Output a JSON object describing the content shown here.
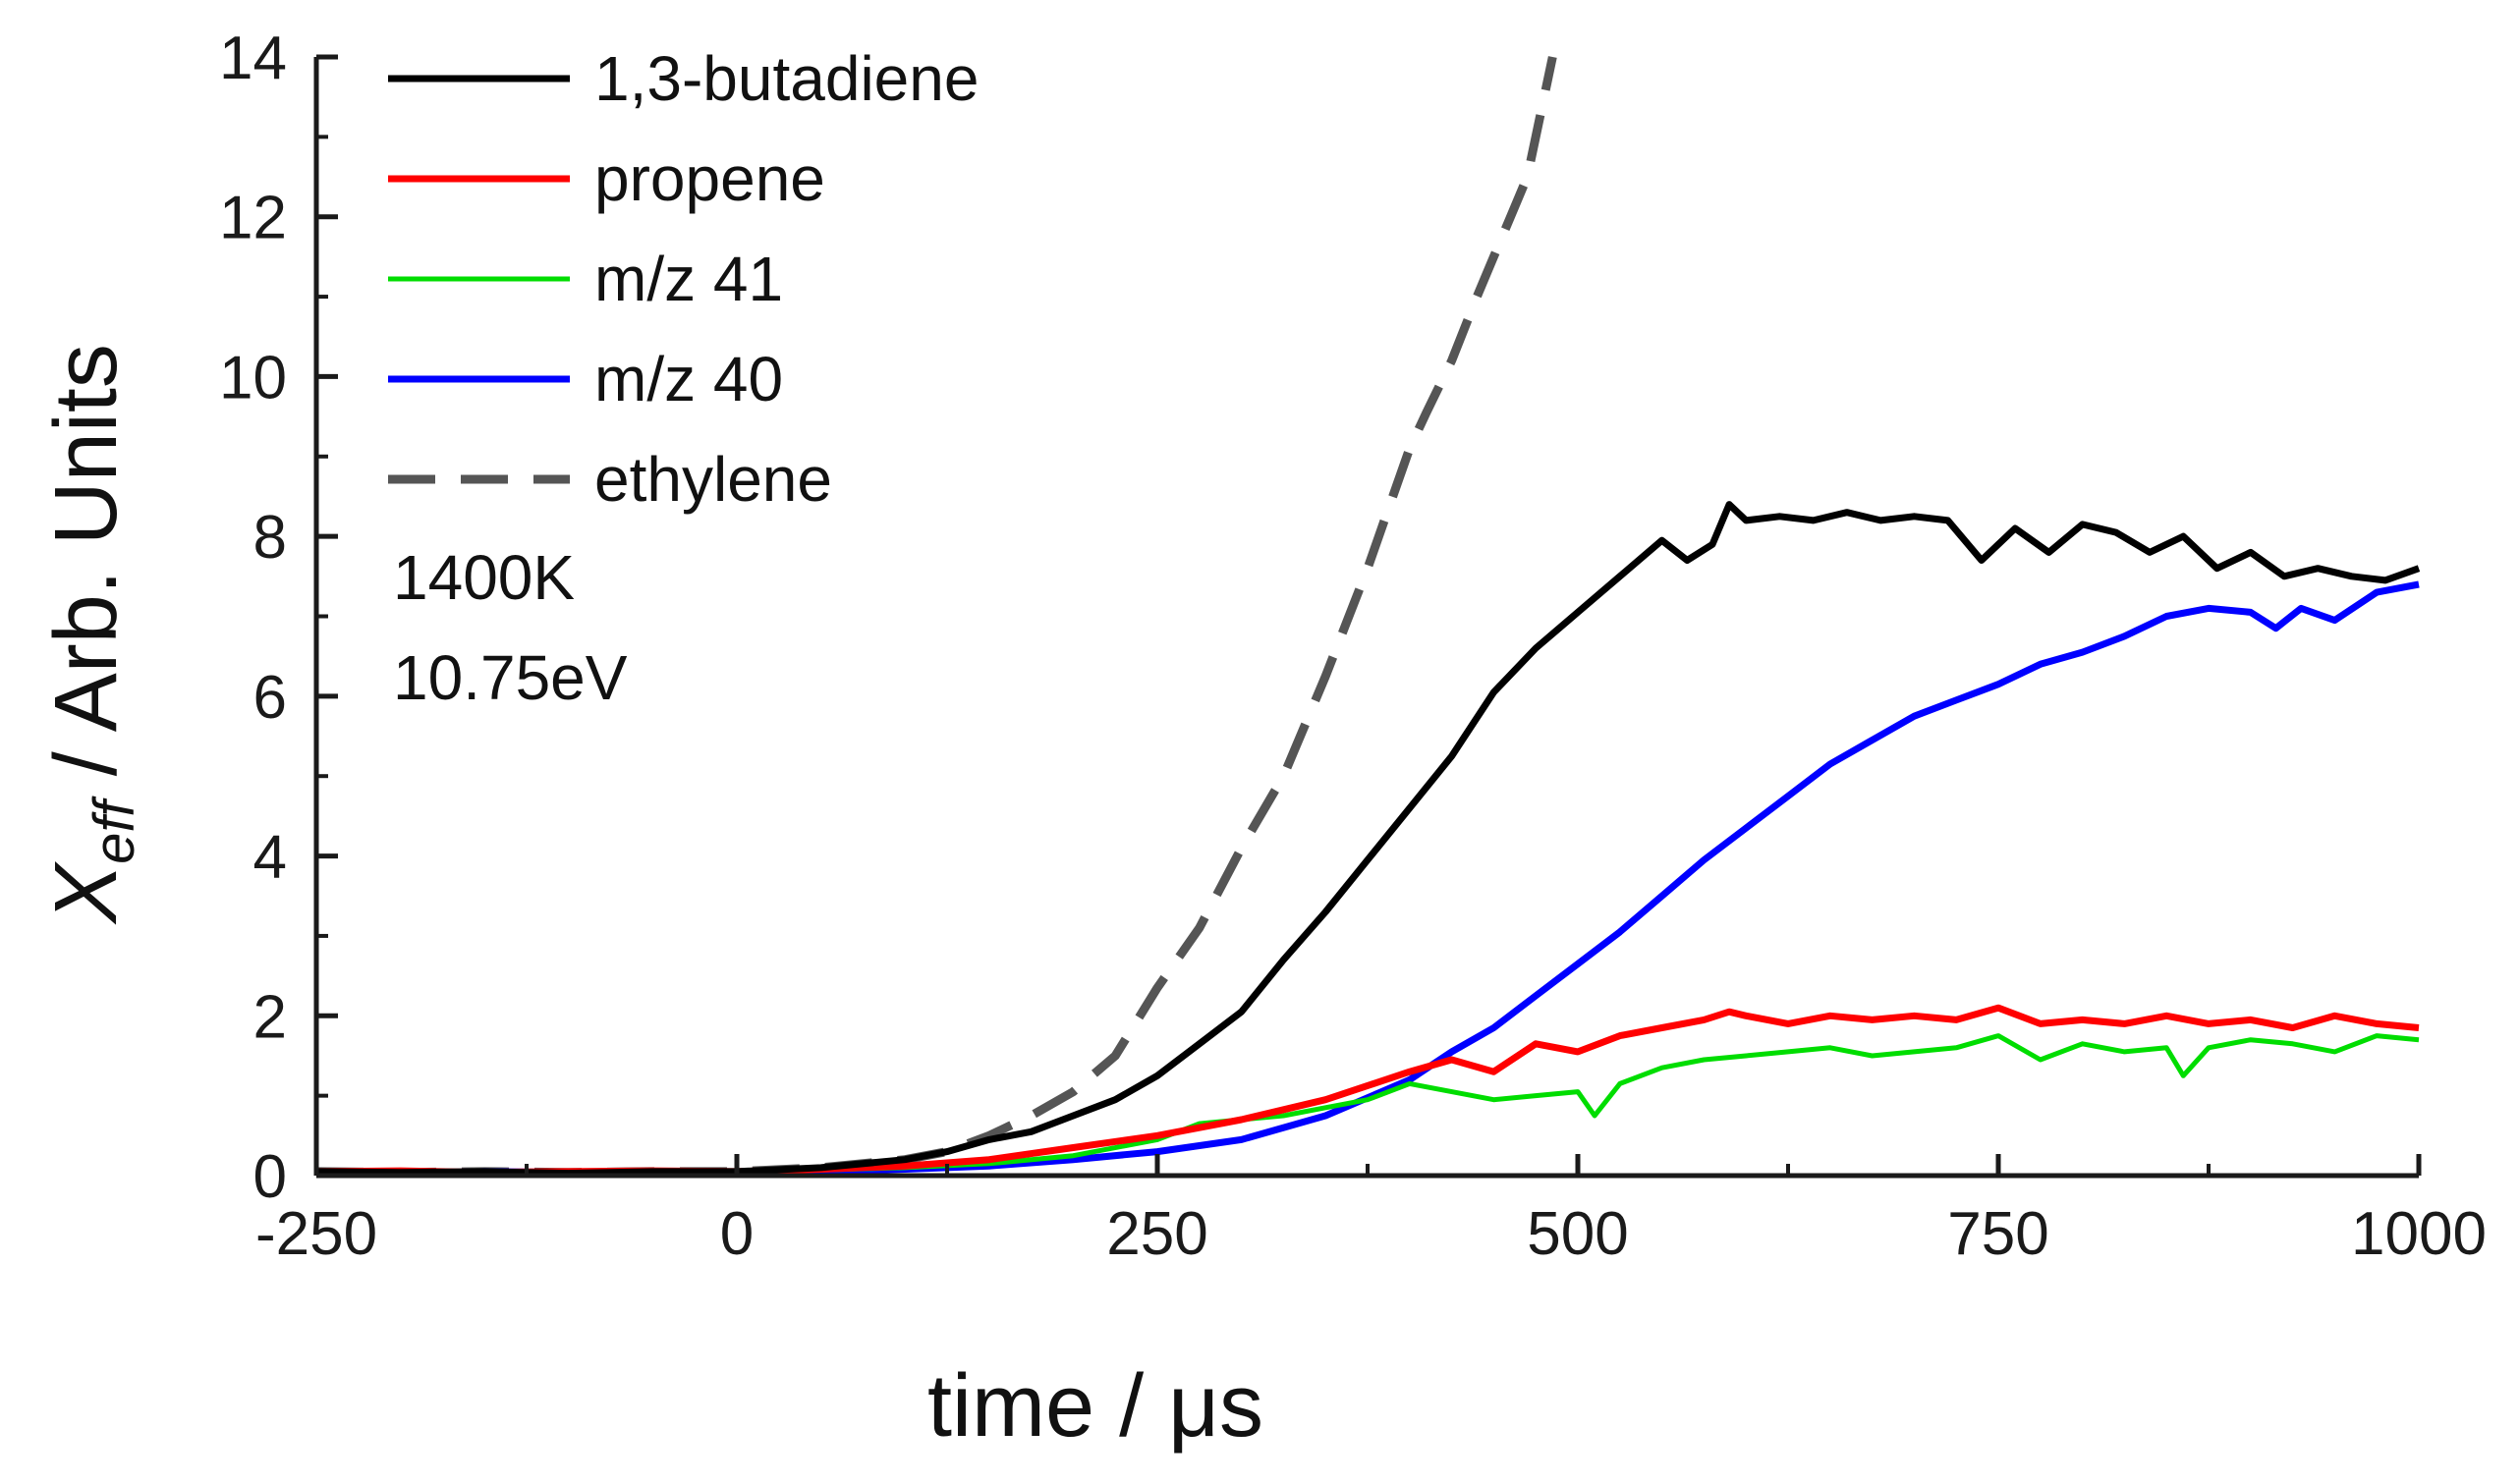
{
  "chart_data": {
    "type": "line",
    "title": "",
    "xlabel": "time / μs",
    "ylabel_main": "X",
    "ylabel_sub": "eff",
    "ylabel_rest": " / Arb. Units",
    "xlim": [
      -250,
      1000
    ],
    "ylim": [
      0,
      14
    ],
    "x_ticks": [
      -250,
      0,
      250,
      500,
      750,
      1000
    ],
    "y_ticks": [
      0,
      2,
      4,
      6,
      8,
      10,
      12,
      14
    ],
    "grid": false,
    "legend_position": "top-left",
    "annotations": [
      "1400K",
      "10.75eV"
    ],
    "series": [
      {
        "name": "1,3-butadiene",
        "color": "#000000",
        "style": "solid",
        "x": [
          -250,
          -200,
          -150,
          -100,
          -50,
          0,
          50,
          100,
          125,
          150,
          175,
          200,
          225,
          250,
          275,
          300,
          325,
          350,
          375,
          400,
          425,
          450,
          475,
          500,
          525,
          550,
          565,
          580,
          590,
          600,
          620,
          640,
          660,
          680,
          700,
          720,
          740,
          760,
          780,
          800,
          820,
          840,
          860,
          880,
          900,
          920,
          940,
          960,
          980,
          1000
        ],
        "y": [
          0.05,
          0.04,
          0.05,
          0.03,
          0.05,
          0.05,
          0.1,
          0.2,
          0.3,
          0.45,
          0.55,
          0.75,
          0.95,
          1.25,
          1.65,
          2.05,
          2.7,
          3.3,
          3.95,
          4.6,
          5.25,
          6.05,
          6.6,
          7.05,
          7.5,
          7.95,
          7.7,
          7.9,
          8.4,
          8.2,
          8.25,
          8.2,
          8.3,
          8.2,
          8.25,
          8.2,
          7.7,
          8.1,
          7.8,
          8.15,
          8.05,
          7.8,
          8.0,
          7.6,
          7.8,
          7.5,
          7.6,
          7.5,
          7.45,
          7.6
        ]
      },
      {
        "name": "propene",
        "color": "#ff0000",
        "style": "solid",
        "x": [
          -250,
          -200,
          -150,
          -100,
          -50,
          0,
          50,
          100,
          150,
          200,
          250,
          300,
          350,
          400,
          425,
          450,
          475,
          500,
          525,
          550,
          575,
          590,
          600,
          625,
          650,
          675,
          700,
          725,
          750,
          775,
          800,
          825,
          850,
          875,
          900,
          925,
          950,
          975,
          1000
        ],
        "y": [
          0.05,
          0.06,
          0.04,
          0.05,
          0.06,
          0.05,
          0.08,
          0.12,
          0.2,
          0.35,
          0.5,
          0.7,
          0.95,
          1.3,
          1.45,
          1.3,
          1.65,
          1.55,
          1.75,
          1.85,
          1.95,
          2.05,
          2.0,
          1.9,
          2.0,
          1.95,
          2.0,
          1.95,
          2.1,
          1.9,
          1.95,
          1.9,
          2.0,
          1.9,
          1.95,
          1.85,
          2.0,
          1.9,
          1.85
        ]
      },
      {
        "name": "m/z 41",
        "color": "#00dd00",
        "style": "solid",
        "x": [
          -250,
          -200,
          -150,
          -100,
          -50,
          0,
          50,
          100,
          150,
          200,
          250,
          275,
          300,
          325,
          350,
          375,
          400,
          425,
          450,
          475,
          500,
          510,
          525,
          550,
          575,
          600,
          625,
          650,
          675,
          700,
          725,
          750,
          775,
          800,
          825,
          850,
          860,
          875,
          900,
          925,
          950,
          975,
          1000
        ],
        "y": [
          0.03,
          0.04,
          0.03,
          0.04,
          0.03,
          0.05,
          0.07,
          0.1,
          0.15,
          0.25,
          0.45,
          0.65,
          0.7,
          0.75,
          0.85,
          0.95,
          1.15,
          1.05,
          0.95,
          1.0,
          1.05,
          0.75,
          1.15,
          1.35,
          1.45,
          1.5,
          1.55,
          1.6,
          1.5,
          1.55,
          1.6,
          1.75,
          1.45,
          1.65,
          1.55,
          1.6,
          1.25,
          1.6,
          1.7,
          1.65,
          1.55,
          1.75,
          1.7
        ]
      },
      {
        "name": "m/z 40",
        "color": "#0000ff",
        "style": "solid",
        "x": [
          -250,
          -200,
          -150,
          -100,
          -50,
          0,
          50,
          100,
          150,
          200,
          250,
          300,
          350,
          400,
          425,
          450,
          475,
          500,
          525,
          550,
          575,
          600,
          625,
          650,
          675,
          700,
          725,
          750,
          775,
          800,
          825,
          850,
          875,
          900,
          915,
          930,
          950,
          975,
          1000
        ],
        "y": [
          0.04,
          0.03,
          0.05,
          0.04,
          0.03,
          0.04,
          0.05,
          0.08,
          0.12,
          0.2,
          0.3,
          0.45,
          0.75,
          1.2,
          1.55,
          1.85,
          2.25,
          2.65,
          3.05,
          3.5,
          3.95,
          4.35,
          4.75,
          5.15,
          5.45,
          5.75,
          5.95,
          6.15,
          6.4,
          6.55,
          6.75,
          7.0,
          7.1,
          7.05,
          6.85,
          7.1,
          6.95,
          7.3,
          7.4
        ]
      },
      {
        "name": "ethylene",
        "color": "#555555",
        "style": "dashed",
        "x": [
          -250,
          -200,
          -150,
          -100,
          -50,
          0,
          50,
          100,
          125,
          150,
          175,
          200,
          225,
          250,
          275,
          300,
          325,
          350,
          375,
          400,
          410,
          425,
          440,
          450,
          460,
          470,
          485
        ],
        "y": [
          0.05,
          0.04,
          0.05,
          0.04,
          0.05,
          0.05,
          0.1,
          0.2,
          0.3,
          0.5,
          0.75,
          1.05,
          1.5,
          2.35,
          3.1,
          4.1,
          5.0,
          6.25,
          7.6,
          9.1,
          9.55,
          10.2,
          11.0,
          11.5,
          12.0,
          12.5,
          14.0
        ]
      }
    ]
  }
}
